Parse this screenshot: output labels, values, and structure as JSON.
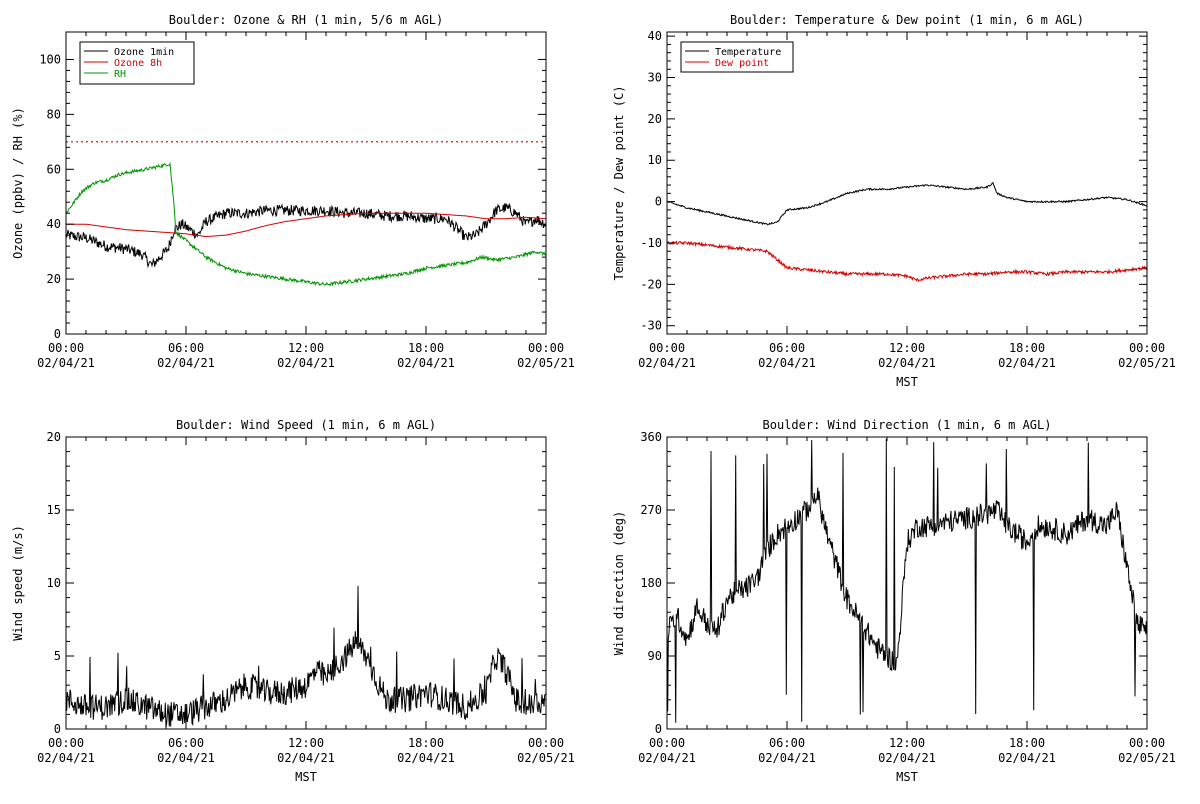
{
  "chart_data": [
    {
      "type": "line",
      "title": "Boulder: Ozone & RH (1 min, 5/6 m AGL)",
      "ylabel": "Ozone (ppbv) / RH (%)",
      "xlabel": "",
      "ylim": [
        0,
        110
      ],
      "yticks": [
        0,
        20,
        40,
        60,
        80,
        100
      ],
      "x_ticks": [
        {
          "hours": 0,
          "time": "00:00",
          "date": "02/04/21"
        },
        {
          "hours": 6,
          "time": "06:00",
          "date": "02/04/21"
        },
        {
          "hours": 12,
          "time": "12:00",
          "date": "02/04/21"
        },
        {
          "hours": 18,
          "time": "18:00",
          "date": "02/04/21"
        },
        {
          "hours": 24,
          "time": "00:00",
          "date": "02/05/21"
        }
      ],
      "legend": {
        "placement": "top-left",
        "entries": [
          {
            "name": "Ozone 1min",
            "color": "#000000"
          },
          {
            "name": "Ozone 8h",
            "color": "#d40000"
          },
          {
            "name": "RH",
            "color": "#009600"
          }
        ]
      },
      "reference_line": {
        "y": 70,
        "color": "#d40000",
        "style": "dotted"
      },
      "series": [
        {
          "name": "Ozone 1min",
          "color": "#000000",
          "noise": 2.0,
          "points": [
            [
              0,
              36
            ],
            [
              1,
              35
            ],
            [
              2,
              32
            ],
            [
              3,
              31
            ],
            [
              3.8,
              29
            ],
            [
              4.3,
              25
            ],
            [
              4.7,
              28
            ],
            [
              5.1,
              31
            ],
            [
              5.4,
              38
            ],
            [
              5.8,
              40
            ],
            [
              6.2,
              38
            ],
            [
              6.6,
              36
            ],
            [
              7,
              41
            ],
            [
              8,
              44
            ],
            [
              9,
              44
            ],
            [
              10,
              45
            ],
            [
              11,
              45
            ],
            [
              12,
              45
            ],
            [
              13,
              45
            ],
            [
              14,
              44
            ],
            [
              15,
              44
            ],
            [
              16,
              43
            ],
            [
              17,
              43
            ],
            [
              18,
              42
            ],
            [
              19,
              42
            ],
            [
              19.6,
              38
            ],
            [
              20,
              35
            ],
            [
              20.5,
              36
            ],
            [
              21,
              40
            ],
            [
              21.5,
              45
            ],
            [
              22,
              46
            ],
            [
              22.5,
              44
            ],
            [
              23,
              40
            ],
            [
              23.5,
              42
            ],
            [
              24,
              40
            ]
          ]
        },
        {
          "name": "Ozone 8h",
          "color": "#d40000",
          "noise": 0,
          "points": [
            [
              0,
              40
            ],
            [
              1,
              40
            ],
            [
              2,
              39
            ],
            [
              3,
              38
            ],
            [
              4,
              37.5
            ],
            [
              5,
              37
            ],
            [
              6,
              36.5
            ],
            [
              7,
              35.5
            ],
            [
              8,
              36
            ],
            [
              9,
              37.5
            ],
            [
              10,
              39.5
            ],
            [
              11,
              41
            ],
            [
              12,
              42
            ],
            [
              13,
              43
            ],
            [
              14,
              43.5
            ],
            [
              15,
              44
            ],
            [
              16,
              44
            ],
            [
              17,
              44
            ],
            [
              18,
              44
            ],
            [
              19,
              43.5
            ],
            [
              20,
              43
            ],
            [
              21,
              42
            ],
            [
              22,
              42
            ],
            [
              23,
              42.5
            ],
            [
              24,
              42
            ]
          ]
        },
        {
          "name": "RH",
          "color": "#009600",
          "noise": 0.6,
          "points": [
            [
              0,
              44
            ],
            [
              0.4,
              48
            ],
            [
              0.8,
              52
            ],
            [
              1.4,
              55
            ],
            [
              2,
              56
            ],
            [
              2.6,
              58
            ],
            [
              3.2,
              59
            ],
            [
              4,
              60
            ],
            [
              4.6,
              61
            ],
            [
              5.2,
              62
            ],
            [
              5.4,
              47
            ],
            [
              5.5,
              37
            ],
            [
              6,
              34
            ],
            [
              7,
              28
            ],
            [
              8,
              24
            ],
            [
              9,
              22
            ],
            [
              10,
              21
            ],
            [
              11,
              20
            ],
            [
              12,
              19
            ],
            [
              13,
              18
            ],
            [
              14,
              19
            ],
            [
              15,
              20
            ],
            [
              16,
              21
            ],
            [
              17,
              22
            ],
            [
              18,
              24
            ],
            [
              19,
              25
            ],
            [
              20,
              26
            ],
            [
              20.8,
              28
            ],
            [
              21.5,
              27
            ],
            [
              22.5,
              28
            ],
            [
              23.5,
              30
            ],
            [
              24,
              29
            ]
          ]
        }
      ]
    },
    {
      "type": "line",
      "title": "Boulder: Temperature & Dew point (1 min, 6 m AGL)",
      "ylabel": "Temperature / Dew point (C)",
      "xlabel": "MST",
      "ylim": [
        -32,
        41
      ],
      "yticks": [
        -30,
        -20,
        -10,
        0,
        10,
        20,
        30,
        40
      ],
      "x_ticks": [
        {
          "hours": 0,
          "time": "00:00",
          "date": "02/04/21"
        },
        {
          "hours": 6,
          "time": "06:00",
          "date": "02/04/21"
        },
        {
          "hours": 12,
          "time": "12:00",
          "date": "02/04/21"
        },
        {
          "hours": 18,
          "time": "18:00",
          "date": "02/04/21"
        },
        {
          "hours": 24,
          "time": "00:00",
          "date": "02/05/21"
        }
      ],
      "legend": {
        "placement": "top-left",
        "entries": [
          {
            "name": "Temperature",
            "color": "#000000"
          },
          {
            "name": "Dew point",
            "color": "#d40000"
          }
        ]
      },
      "series": [
        {
          "name": "Temperature",
          "color": "#000000",
          "noise": 0.2,
          "points": [
            [
              0,
              0
            ],
            [
              1,
              -1.5
            ],
            [
              2,
              -2.5
            ],
            [
              3,
              -3.5
            ],
            [
              4,
              -4.5
            ],
            [
              5,
              -5.5
            ],
            [
              5.5,
              -5
            ],
            [
              6,
              -2
            ],
            [
              7,
              -1.5
            ],
            [
              8,
              0
            ],
            [
              9,
              2
            ],
            [
              10,
              3
            ],
            [
              11,
              3
            ],
            [
              12,
              3.5
            ],
            [
              13,
              4
            ],
            [
              14,
              3.5
            ],
            [
              15,
              3
            ],
            [
              16,
              3.5
            ],
            [
              16.3,
              4.5
            ],
            [
              16.5,
              2
            ],
            [
              17,
              1
            ],
            [
              18,
              0
            ],
            [
              19,
              0
            ],
            [
              20,
              0
            ],
            [
              21,
              0.5
            ],
            [
              22,
              1
            ],
            [
              23,
              0.5
            ],
            [
              24,
              -1
            ]
          ]
        },
        {
          "name": "Dew point",
          "color": "#d40000",
          "noise": 0.35,
          "points": [
            [
              0,
              -10
            ],
            [
              1,
              -10
            ],
            [
              2,
              -10.5
            ],
            [
              3,
              -11
            ],
            [
              4,
              -11.5
            ],
            [
              5,
              -12
            ],
            [
              5.5,
              -14
            ],
            [
              6,
              -16
            ],
            [
              7,
              -16.5
            ],
            [
              8,
              -17
            ],
            [
              9,
              -17.5
            ],
            [
              10,
              -17.5
            ],
            [
              11,
              -17.5
            ],
            [
              12,
              -18
            ],
            [
              12.5,
              -19
            ],
            [
              13,
              -18.5
            ],
            [
              14,
              -18
            ],
            [
              15,
              -17.5
            ],
            [
              16,
              -17.5
            ],
            [
              17,
              -17
            ],
            [
              18,
              -17
            ],
            [
              19,
              -17.5
            ],
            [
              20,
              -17
            ],
            [
              21,
              -17
            ],
            [
              22,
              -17
            ],
            [
              23,
              -16.5
            ],
            [
              24,
              -16
            ]
          ]
        }
      ]
    },
    {
      "type": "line",
      "title": "Boulder: Wind Speed (1 min, 6 m AGL)",
      "ylabel": "Wind speed (m/s)",
      "xlabel": "MST",
      "ylim": [
        0,
        20
      ],
      "yticks": [
        0,
        5,
        10,
        15,
        20
      ],
      "x_ticks": [
        {
          "hours": 0,
          "time": "00:00",
          "date": "02/04/21"
        },
        {
          "hours": 6,
          "time": "06:00",
          "date": "02/04/21"
        },
        {
          "hours": 12,
          "time": "12:00",
          "date": "02/04/21"
        },
        {
          "hours": 18,
          "time": "18:00",
          "date": "02/04/21"
        },
        {
          "hours": 24,
          "time": "00:00",
          "date": "02/05/21"
        }
      ],
      "series": [
        {
          "name": "",
          "color": "#000000",
          "noise": 0.9,
          "points": [
            [
              0,
              2
            ],
            [
              1,
              1.5
            ],
            [
              2,
              1.5
            ],
            [
              3,
              2
            ],
            [
              4,
              1.5
            ],
            [
              5,
              1
            ],
            [
              6,
              1
            ],
            [
              7,
              1.5
            ],
            [
              8,
              2
            ],
            [
              9,
              3
            ],
            [
              10,
              2.5
            ],
            [
              11,
              2.5
            ],
            [
              12,
              3
            ],
            [
              12.5,
              4
            ],
            [
              13,
              3.5
            ],
            [
              14,
              5
            ],
            [
              14.5,
              6
            ],
            [
              15,
              5
            ],
            [
              15.5,
              3.5
            ],
            [
              16,
              2
            ],
            [
              17,
              2
            ],
            [
              18,
              2.5
            ],
            [
              19,
              2
            ],
            [
              20,
              1.5
            ],
            [
              21,
              2.5
            ],
            [
              21.5,
              5
            ],
            [
              22,
              4
            ],
            [
              22.5,
              2
            ],
            [
              23,
              1.5
            ],
            [
              24,
              2
            ]
          ]
        }
      ]
    },
    {
      "type": "line",
      "title": "Boulder: Wind Direction (1 min, 6 m AGL)",
      "ylabel": "Wind direction (deg)",
      "xlabel": "MST",
      "ylim": [
        0,
        360
      ],
      "yticks": [
        0,
        90,
        180,
        270,
        360
      ],
      "x_ticks": [
        {
          "hours": 0,
          "time": "00:00",
          "date": "02/04/21"
        },
        {
          "hours": 6,
          "time": "06:00",
          "date": "02/04/21"
        },
        {
          "hours": 12,
          "time": "12:00",
          "date": "02/04/21"
        },
        {
          "hours": 18,
          "time": "18:00",
          "date": "02/04/21"
        },
        {
          "hours": 24,
          "time": "00:00",
          "date": "02/05/21"
        }
      ],
      "series": [
        {
          "name": "",
          "color": "#000000",
          "noise": 14,
          "points": [
            [
              0,
              120
            ],
            [
              0.5,
              140
            ],
            [
              1,
              110
            ],
            [
              1.5,
              150
            ],
            [
              2,
              130
            ],
            [
              2.5,
              120
            ],
            [
              3,
              160
            ],
            [
              3.5,
              170
            ],
            [
              4,
              175
            ],
            [
              4.5,
              185
            ],
            [
              5,
              220
            ],
            [
              5.5,
              240
            ],
            [
              6,
              250
            ],
            [
              7,
              270
            ],
            [
              7.5,
              290
            ],
            [
              8,
              240
            ],
            [
              8.5,
              200
            ],
            [
              9,
              160
            ],
            [
              10,
              120
            ],
            [
              10.5,
              100
            ],
            [
              11,
              90
            ],
            [
              11.5,
              80
            ],
            [
              12,
              230
            ],
            [
              12.5,
              250
            ],
            [
              13,
              250
            ],
            [
              14,
              255
            ],
            [
              15,
              260
            ],
            [
              16,
              265
            ],
            [
              16.5,
              270
            ],
            [
              17,
              250
            ],
            [
              18,
              230
            ],
            [
              18.5,
              250
            ],
            [
              19,
              250
            ],
            [
              20,
              240
            ],
            [
              20.5,
              250
            ],
            [
              21,
              260
            ],
            [
              22,
              250
            ],
            [
              22.5,
              270
            ],
            [
              23,
              200
            ],
            [
              23.5,
              130
            ],
            [
              24,
              120
            ]
          ]
        }
      ]
    }
  ]
}
